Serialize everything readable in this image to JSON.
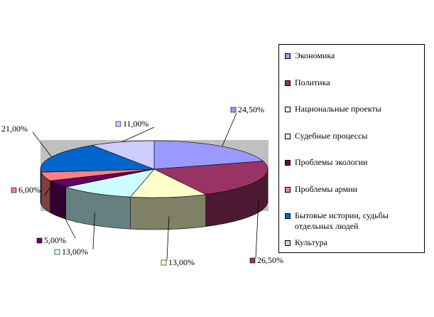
{
  "chart_data": {
    "type": "pie",
    "categories": [
      "Экономика",
      "Политика",
      "Национальные проекты",
      "Судебные процессы",
      "Проблемы экологии",
      "Проблемы армии",
      "Бытовые истории, судьбы отдельных людей",
      "Культура"
    ],
    "values": [
      24.5,
      26.5,
      13,
      13,
      5,
      6,
      21,
      11
    ],
    "value_labels": [
      "24,50%",
      "26,50%",
      "13,00%",
      "13,00%",
      "5,00%",
      "6,00%",
      "21,00%",
      "11,00%"
    ],
    "colors": [
      "#9999ff",
      "#993366",
      "#ffffcc",
      "#ccffff",
      "#660066",
      "#ff8080",
      "#0066cc",
      "#ccccff"
    ]
  }
}
